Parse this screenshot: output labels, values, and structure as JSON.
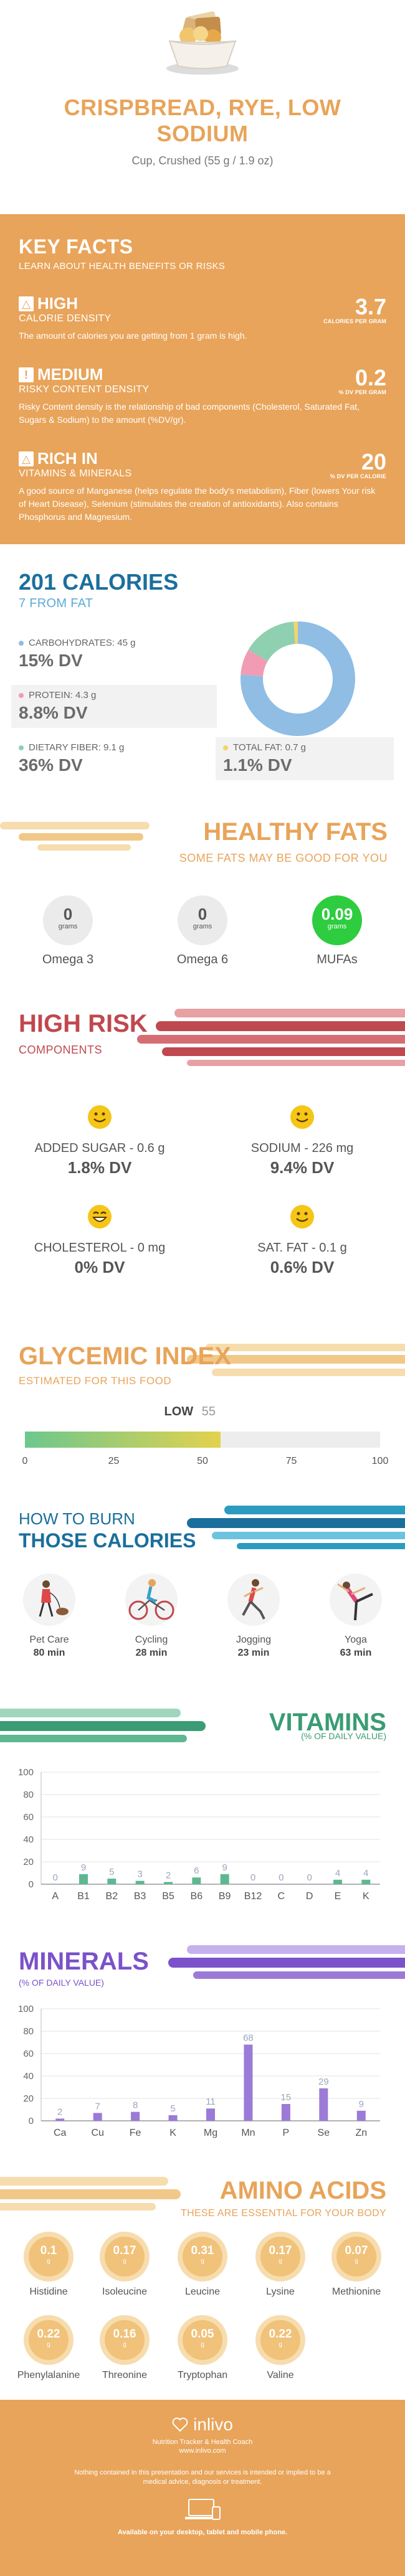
{
  "header": {
    "title": "CRISPBREAD, RYE, LOW SODIUM",
    "subtitle": "Cup, Crushed (55 g / 1.9 oz)"
  },
  "key_facts": {
    "title": "KEY FACTS",
    "subtitle": "LEARN ABOUT HEALTH BENEFITS OR RISKS",
    "items": [
      {
        "icon": "flame-icon",
        "level": "HIGH",
        "category": "CALORIE DENSITY",
        "value": "3.7",
        "unit": "CALORIES PER GRAM",
        "description": "The amount of calories you are getting from 1 gram is high."
      },
      {
        "icon": "warning-icon",
        "level": "MEDIUM",
        "category": "RISKY CONTENT DENSITY",
        "value": "0.2",
        "unit": "% DV PER GRAM",
        "description": "Risky Content density is the relationship of bad components (Cholesterol, Saturated Fat, Sugars & Sodium) to the amount (%DV/gr)."
      },
      {
        "icon": "flame-icon",
        "level": "RICH  IN",
        "category": "VITAMINS & MINERALS",
        "value": "20",
        "unit": "% DV PER CALORIE",
        "description": "A good source of Manganese (helps regulate the body's metabolism), Fiber (lowers Your risk of Heart Disease), Selenium (stimulates the creation of antioxidants). Also contains Phosphorus and Magnesium."
      }
    ]
  },
  "calories": {
    "title": "201 CALORIES",
    "subtitle": "7 FROM FAT",
    "macros": [
      {
        "label": "CARBOHYDRATES: 45 g",
        "dv": "15% DV",
        "color": "#8fbde4"
      },
      {
        "label": "PROTEIN: 4.3 g",
        "dv": "8.8% DV",
        "color": "#f29bb5"
      },
      {
        "label": "DIETARY FIBER: 9.1 g",
        "dv": "36% DV",
        "color": "#8fd0b0"
      },
      {
        "label": "TOTAL FAT: 0.7 g",
        "dv": "1.1% DV",
        "color": "#f5d36b"
      }
    ],
    "donut": [
      {
        "name": "carbohydrates",
        "value": 45,
        "color": "#8fbde4"
      },
      {
        "name": "protein",
        "value": 4.3,
        "color": "#f29bb5"
      },
      {
        "name": "fiber",
        "value": 9.1,
        "color": "#8fd0b0"
      },
      {
        "name": "fat",
        "value": 0.7,
        "color": "#f5d36b"
      }
    ]
  },
  "healthy_fats": {
    "title": "HEALTHY FATS",
    "subtitle": "SOME FATS MAY BE GOOD FOR YOU",
    "unit": "grams",
    "items": [
      {
        "name": "Omega 3",
        "value": "0",
        "highlight": false
      },
      {
        "name": "Omega 6",
        "value": "0",
        "highlight": false
      },
      {
        "name": "MUFAs",
        "value": "0.09",
        "highlight": true
      }
    ]
  },
  "high_risk": {
    "title": "HIGH RISK",
    "subtitle": "COMPONENTS",
    "items": [
      {
        "label": "ADDED SUGAR - 0.6 g",
        "dv": "1.8% DV",
        "icon": "smile-icon"
      },
      {
        "label": "SODIUM - 226 mg",
        "dv": "9.4% DV",
        "icon": "smile-icon"
      },
      {
        "label": "CHOLESTEROL - 0 mg",
        "dv": "0% DV",
        "icon": "grin-icon"
      },
      {
        "label": "SAT. FAT - 0.1 g",
        "dv": "0.6% DV",
        "icon": "smile-icon"
      }
    ]
  },
  "glycemic": {
    "title": "GLYCEMIC INDEX",
    "subtitle": "ESTIMATED FOR THIS FOOD",
    "level": "LOW",
    "value": 55,
    "ticks": [
      "0",
      "25",
      "50",
      "75",
      "100"
    ]
  },
  "burn": {
    "title_line1": "HOW TO BURN",
    "title_line2": "THOSE CALORIES",
    "activities": [
      {
        "name": "Pet Care",
        "minutes": "80 min",
        "icon": "pet-care-icon"
      },
      {
        "name": "Cycling",
        "minutes": "28 min",
        "icon": "cycling-icon"
      },
      {
        "name": "Jogging",
        "minutes": "23 min",
        "icon": "jogging-icon"
      },
      {
        "name": "Yoga",
        "minutes": "63 min",
        "icon": "yoga-icon"
      }
    ]
  },
  "vitamins": {
    "title": "VITAMINS",
    "subtitle": "(% OF DAILY VALUE)",
    "chart_data": {
      "type": "bar",
      "categories": [
        "A",
        "B1",
        "B2",
        "B3",
        "B5",
        "B6",
        "B9",
        "B12",
        "C",
        "D",
        "E",
        "K"
      ],
      "values": [
        0,
        9,
        5,
        3,
        2,
        6,
        9,
        0,
        0,
        0,
        4,
        4
      ],
      "ylim": [
        0,
        100
      ],
      "yticks": [
        "0",
        "20",
        "40",
        "60",
        "80",
        "100"
      ],
      "color": "#5db892"
    }
  },
  "minerals": {
    "title": "MINERALS",
    "subtitle": "(% OF DAILY VALUE)",
    "chart_data": {
      "type": "bar",
      "categories": [
        "Ca",
        "Cu",
        "Fe",
        "K",
        "Mg",
        "Mn",
        "P",
        "Se",
        "Zn"
      ],
      "values": [
        2,
        7,
        8,
        5,
        11,
        68,
        15,
        29,
        9
      ],
      "ylim": [
        0,
        100
      ],
      "yticks": [
        "0",
        "20",
        "40",
        "60",
        "80",
        "100"
      ],
      "color": "#9b7ad8"
    }
  },
  "amino_acids": {
    "title": "AMINO ACIDS",
    "subtitle": "THESE ARE ESSENTIAL FOR YOUR BODY",
    "unit": "g",
    "items": [
      {
        "name": "Histidine",
        "value": "0.1"
      },
      {
        "name": "Isoleucine",
        "value": "0.17"
      },
      {
        "name": "Leucine",
        "value": "0.31"
      },
      {
        "name": "Lysine",
        "value": "0.17"
      },
      {
        "name": "Methionine",
        "value": "0.07"
      },
      {
        "name": "Phenylalanine",
        "value": "0.22"
      },
      {
        "name": "Threonine",
        "value": "0.16"
      },
      {
        "name": "Tryptophan",
        "value": "0.05"
      },
      {
        "name": "Valine",
        "value": "0.22"
      }
    ]
  },
  "footer": {
    "logo": "inlivo",
    "tagline": "Nutrition Tracker & Health Coach",
    "url": "www.inlivo.com",
    "disclaimer": "Nothing contained in this presentation and our services is intended or implied to be a medical advice, diagnosis or treatment.",
    "availability": "Available on your desktop, tablet and mobile phone."
  }
}
